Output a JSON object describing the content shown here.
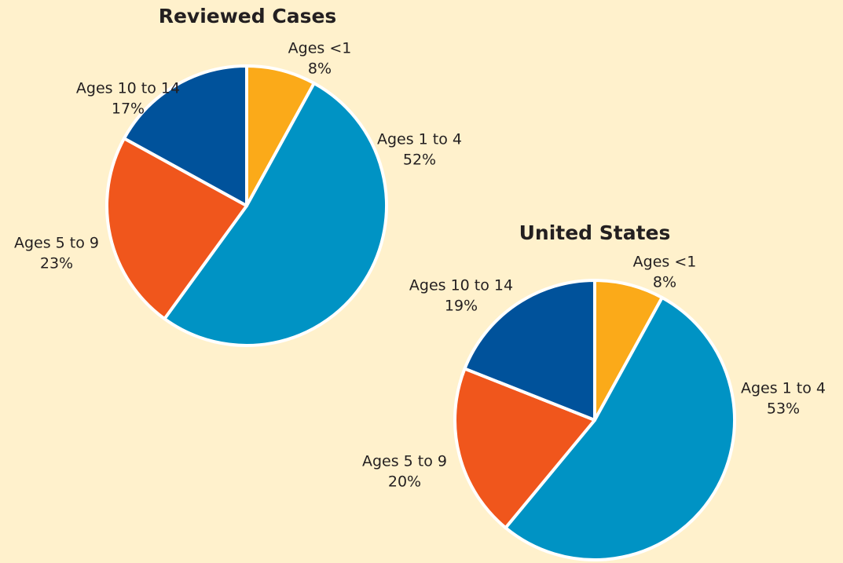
{
  "chart_data": [
    {
      "type": "pie",
      "title": "Reviewed Cases",
      "categories": [
        "Ages <1",
        "Ages 1 to 4",
        "Ages 5 to 9",
        "Ages 10 to 14"
      ],
      "values": [
        8,
        52,
        23,
        17
      ],
      "value_labels": [
        "8%",
        "52%",
        "23%",
        "17%"
      ],
      "colors": [
        "#fbaa19",
        "#0093c4",
        "#f0561c",
        "#00529b"
      ]
    },
    {
      "type": "pie",
      "title": "United States",
      "categories": [
        "Ages <1",
        "Ages 1 to 4",
        "Ages 5 to 9",
        "Ages 10 to 14"
      ],
      "values": [
        8,
        53,
        20,
        19
      ],
      "value_labels": [
        "8%",
        "53%",
        "20%",
        "19%"
      ],
      "colors": [
        "#fbaa19",
        "#0093c4",
        "#f0561c",
        "#00529b"
      ]
    }
  ]
}
